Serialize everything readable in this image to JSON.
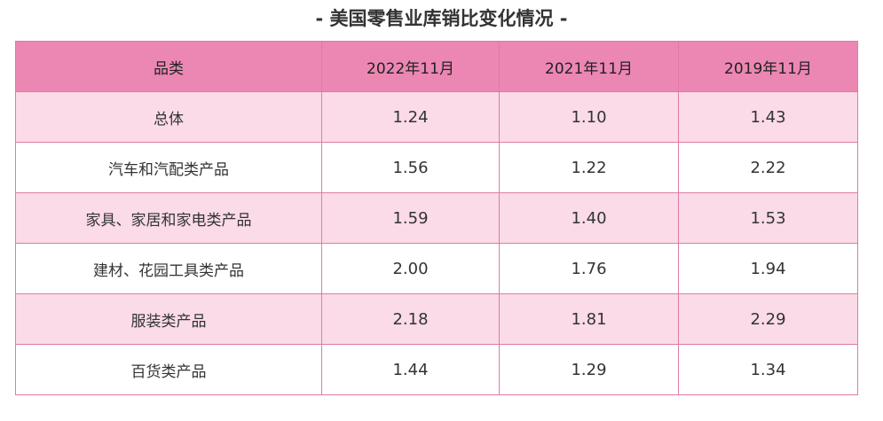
{
  "title": "- 美国零售业库销比变化情况 -",
  "header": [
    "品类",
    "2022年11月",
    "2021年11月",
    "2019年11月"
  ],
  "rows": [
    {
      "label": "总体",
      "values": [
        "1.24",
        "1.10",
        "1.43"
      ]
    },
    {
      "label": "汽车和汽配类产品",
      "values": [
        "1.56",
        "1.22",
        "2.22"
      ]
    },
    {
      "label": "家具、家居和家电类产品",
      "values": [
        "1.59",
        "1.40",
        "1.53"
      ]
    },
    {
      "label": "建材、花园工具类产品",
      "values": [
        "2.00",
        "1.76",
        "1.94"
      ]
    },
    {
      "label": "服装类产品",
      "values": [
        "2.18",
        "1.81",
        "2.29"
      ]
    },
    {
      "label": "百货类产品",
      "values": [
        "1.44",
        "1.29",
        "1.34"
      ]
    }
  ],
  "colors": {
    "header_fill": "#eb87b2",
    "shaded_row_fill": "#fadbe7",
    "grid_line": "#e07aa6"
  }
}
